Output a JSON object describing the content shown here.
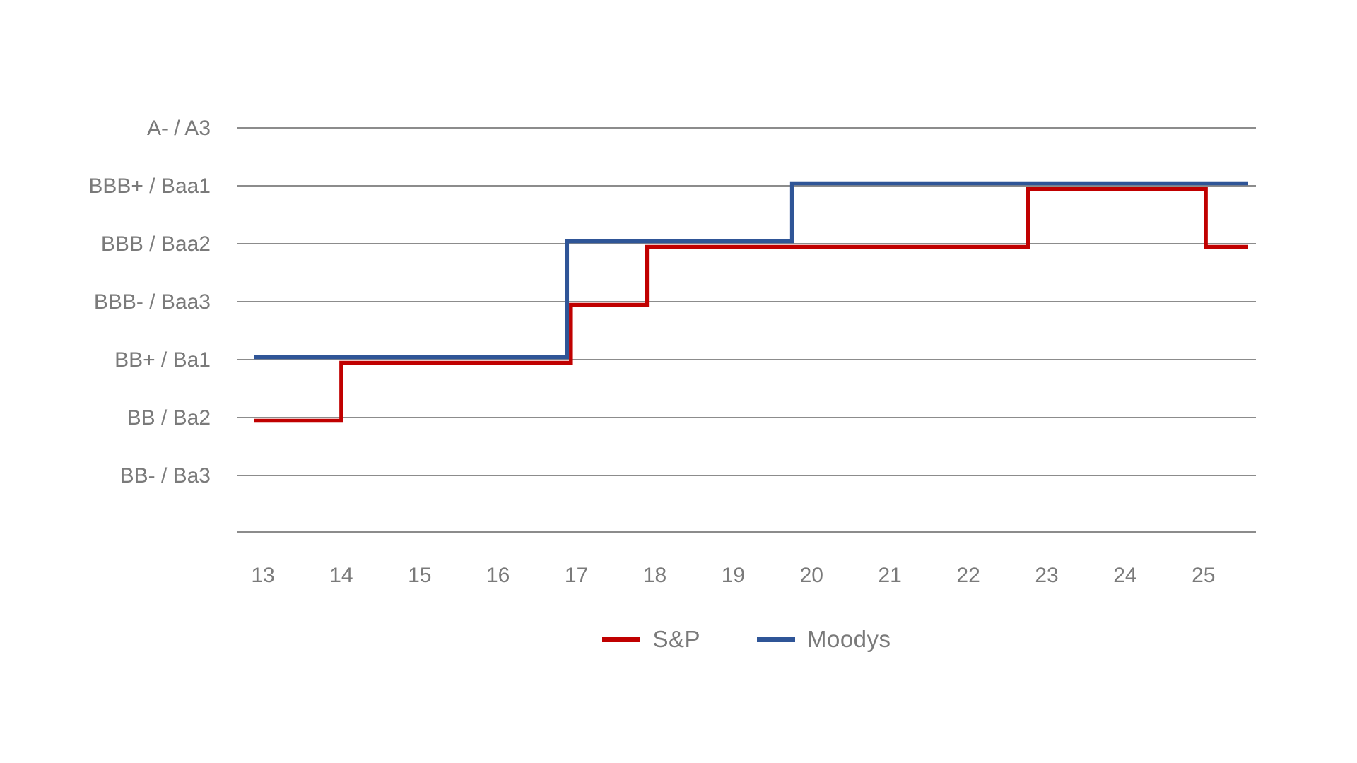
{
  "chart_data": {
    "type": "line",
    "subtype": "step",
    "title": "",
    "y_axis": {
      "categories_top_to_bottom": [
        "A- / A3",
        "BBB+ / Baa1",
        "BBB / Baa2",
        "BBB- / Baa3",
        "BB+ / Ba1",
        "BB / Ba2",
        "BB- / Ba3"
      ],
      "has_unlabeled_baseline": true
    },
    "x_axis": {
      "tick_labels": [
        "13",
        "14",
        "15",
        "16",
        "17",
        "18",
        "19",
        "20",
        "21",
        "22",
        "23",
        "24",
        "25"
      ],
      "range": [
        12.7,
        25.7
      ]
    },
    "series": [
      {
        "name": "S&P",
        "color": "#C00000",
        "points": [
          [
            12.89,
            "BB / Ba2"
          ],
          [
            14.0,
            "BB+ / Ba1"
          ],
          [
            16.93,
            "BBB- / Baa3"
          ],
          [
            17.9,
            "BBB / Baa2"
          ],
          [
            22.76,
            "BBB+ / Baa1"
          ],
          [
            25.03,
            "BBB / Baa2"
          ],
          [
            25.57,
            "BBB / Baa2"
          ]
        ]
      },
      {
        "name": "Moodys",
        "color": "#2F5597",
        "points": [
          [
            12.89,
            "BB+ / Ba1"
          ],
          [
            16.88,
            "BBB / Baa2"
          ],
          [
            19.75,
            "BBB+ / Baa1"
          ],
          [
            25.57,
            "BBB+ / Baa1"
          ]
        ]
      }
    ],
    "legend": {
      "position": "bottom-center",
      "items": [
        {
          "label": "S&P",
          "color": "#C00000"
        },
        {
          "label": "Moodys",
          "color": "#2F5597"
        }
      ]
    },
    "grid": true,
    "colors": {
      "gridline": "#8C8C8C",
      "axis_text": "#7A7A7A",
      "background": "#FFFFFF"
    }
  }
}
